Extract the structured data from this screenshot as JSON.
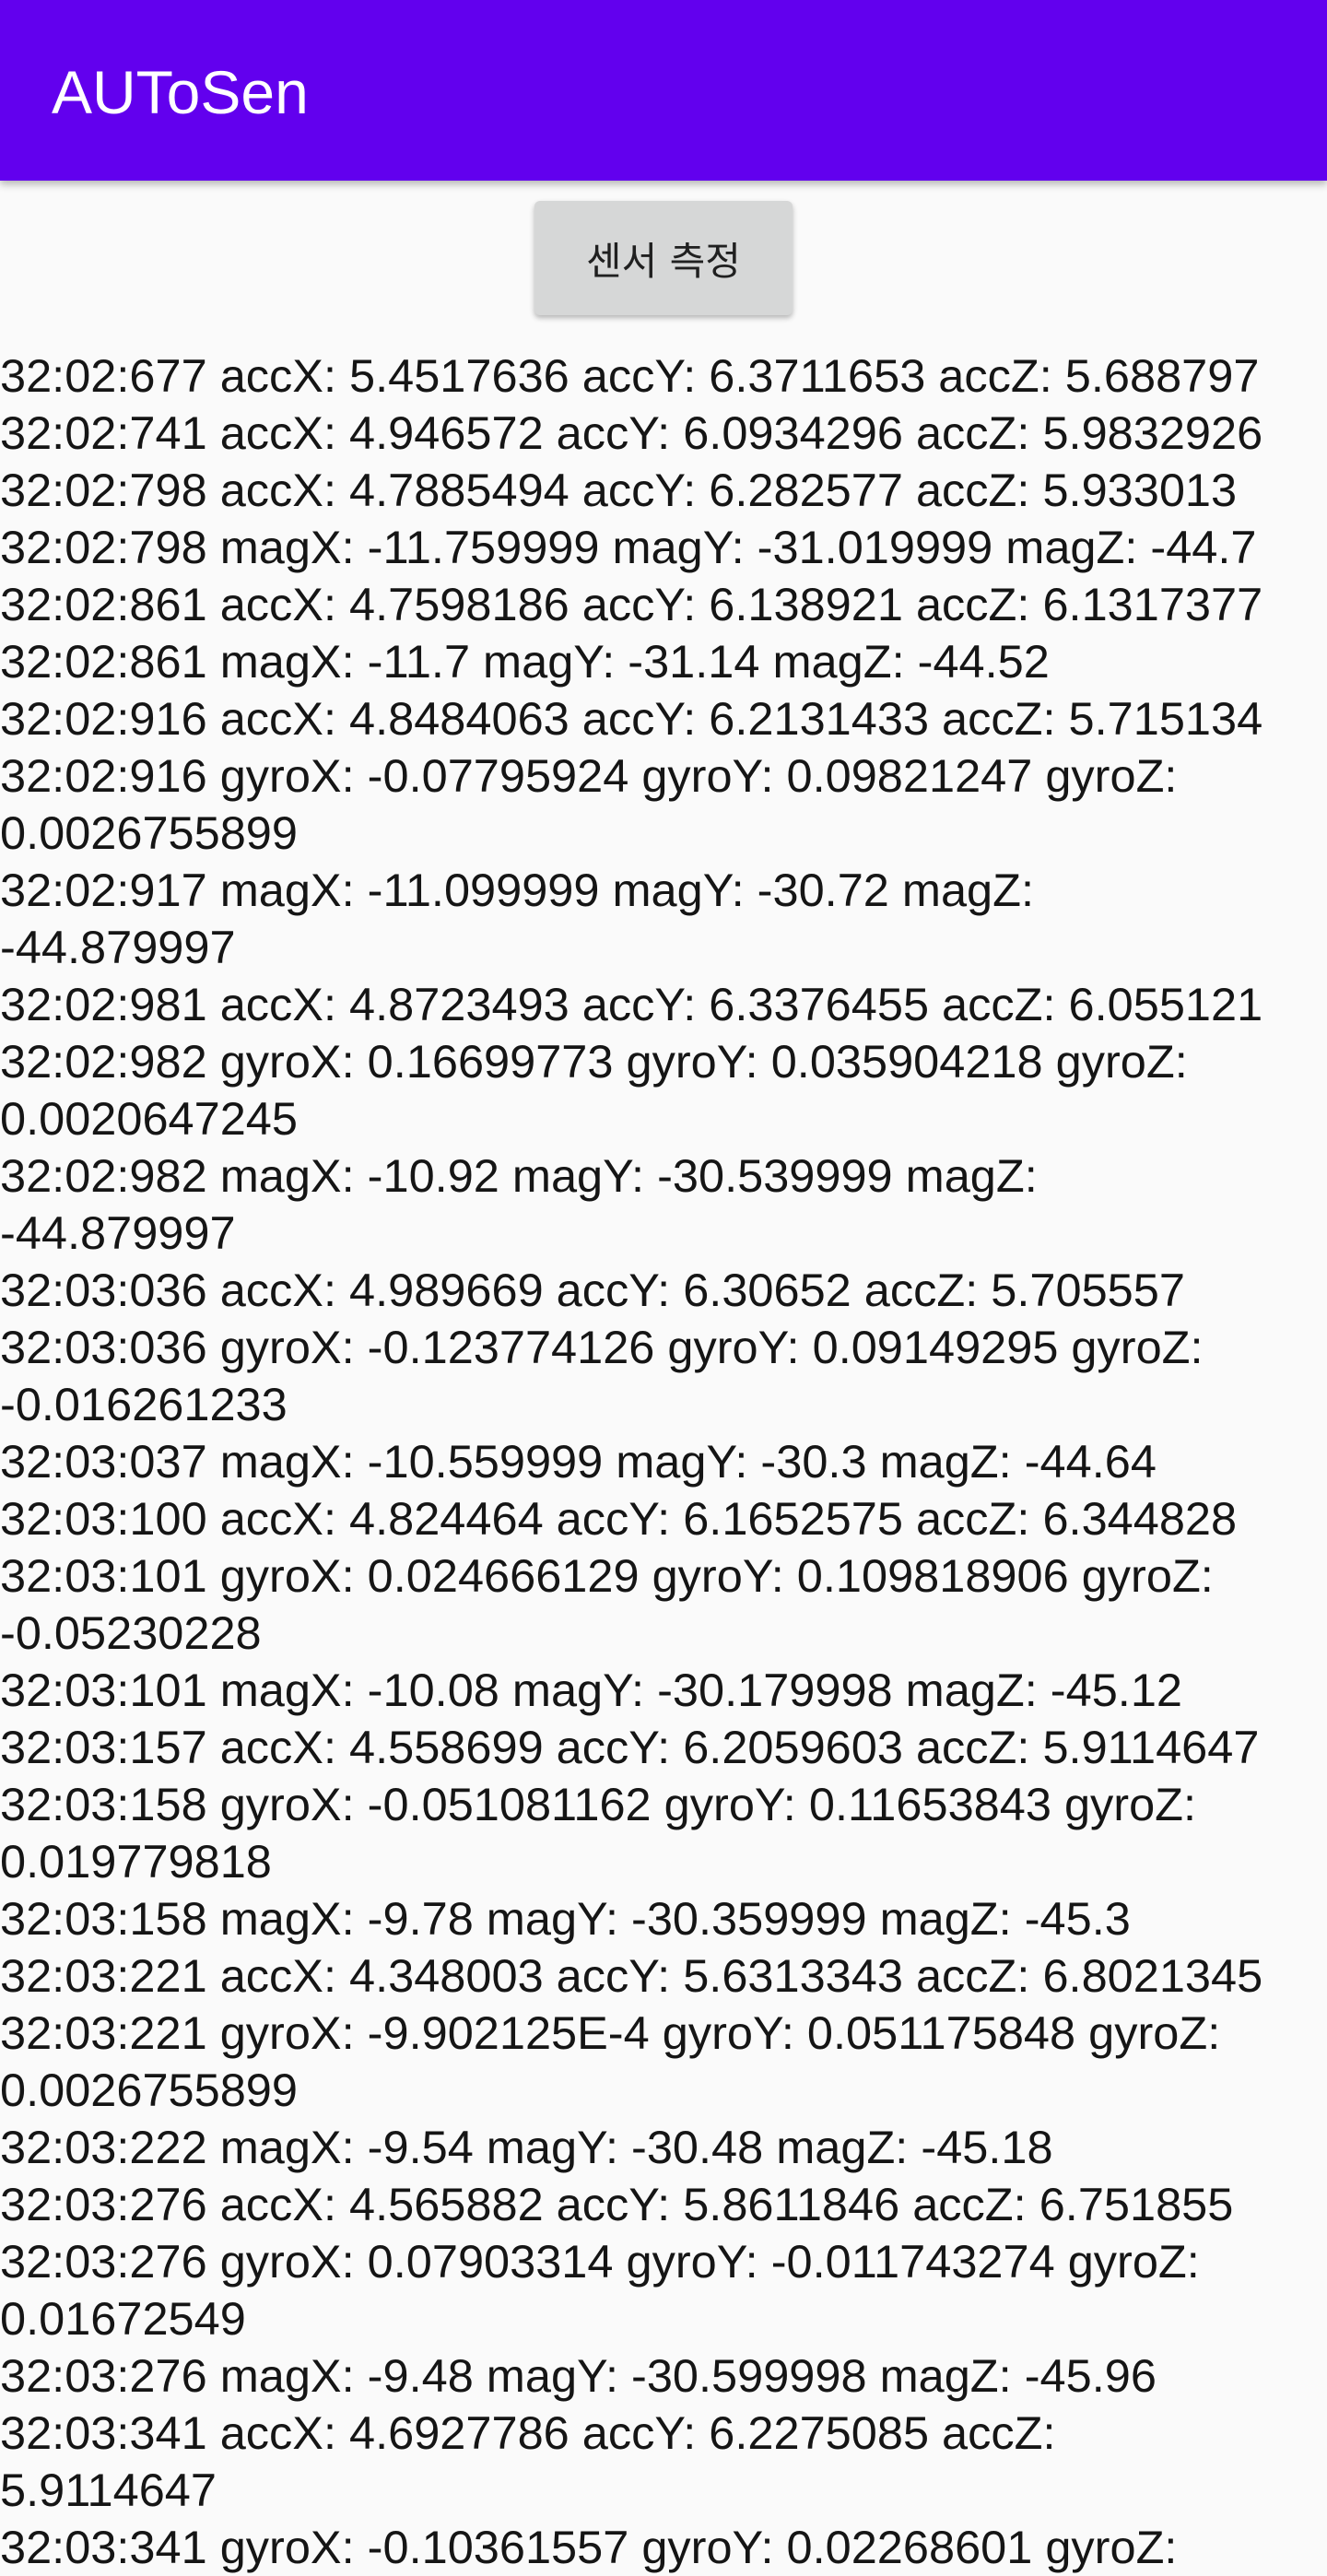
{
  "app_bar": {
    "title": "AUToSen",
    "color": "#6200ee"
  },
  "button": {
    "label": "센서 측정"
  },
  "log": {
    "lines": [
      "32:02:677 accX: 5.4517636 accY: 6.3711653 accZ: 5.688797",
      "32:02:741 accX: 4.946572 accY: 6.0934296 accZ: 5.9832926",
      "32:02:798 accX: 4.7885494 accY: 6.282577 accZ: 5.933013",
      "32:02:798 magX: -11.759999 magY: -31.019999 magZ: -44.7",
      "32:02:861 accX: 4.7598186 accY: 6.138921 accZ: 6.1317377",
      "32:02:861 magX: -11.7 magY: -31.14 magZ: -44.52",
      "32:02:916 accX: 4.8484063 accY: 6.2131433 accZ: 5.715134",
      "32:02:916 gyroX: -0.07795924 gyroY: 0.09821247 gyroZ:",
      "0.0026755899",
      "32:02:917 magX: -11.099999 magY: -30.72 magZ:",
      "-44.879997",
      "32:02:981 accX: 4.8723493 accY: 6.3376455 accZ: 6.055121",
      "32:02:982 gyroX: 0.16699773 gyroY: 0.035904218 gyroZ:",
      "0.0020647245",
      "32:02:982 magX: -10.92 magY: -30.539999 magZ:",
      "-44.879997",
      "32:03:036 accX: 4.989669 accY: 6.30652 accZ: 5.705557",
      "32:03:036 gyroX: -0.123774126 gyroY: 0.09149295 gyroZ:",
      "-0.016261233",
      "32:03:037 magX: -10.559999 magY: -30.3 magZ: -44.64",
      "32:03:100 accX: 4.824464 accY: 6.1652575 accZ: 6.344828",
      "32:03:101 gyroX: 0.024666129 gyroY: 0.109818906 gyroZ:",
      "-0.05230228",
      "32:03:101 magX: -10.08 magY: -30.179998 magZ: -45.12",
      "32:03:157 accX: 4.558699 accY: 6.2059603 accZ: 5.9114647",
      "32:03:158 gyroX: -0.051081162 gyroY: 0.11653843 gyroZ:",
      "0.019779818",
      "32:03:158 magX: -9.78 magY: -30.359999 magZ: -45.3",
      "32:03:221 accX: 4.348003 accY: 5.6313343 accZ: 6.8021345",
      "32:03:221 gyroX: -9.902125E-4 gyroY: 0.051175848 gyroZ:",
      "0.0026755899",
      "32:03:222 magX: -9.54 magY: -30.48 magZ: -45.18",
      "32:03:276 accX: 4.565882 accY: 5.8611846 accZ: 6.751855",
      "32:03:276 gyroX: 0.07903314 gyroY: -0.011743274 gyroZ:",
      "0.01672549",
      "32:03:276 magX: -9.48 magY: -30.599998 magZ: -45.96",
      "32:03:341 accX: 4.6927786 accY: 6.2275085 accZ:",
      "5.9114647",
      "32:03:341 gyroX: -0.10361557 gyroY: 0.02268601 gyroZ:"
    ]
  }
}
